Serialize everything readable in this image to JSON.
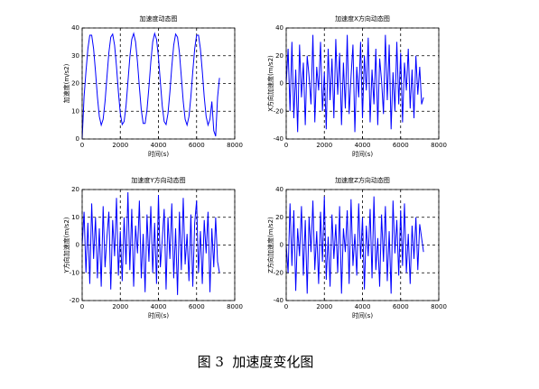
{
  "chart_data": [
    {
      "type": "line",
      "title": "加速度动态图",
      "xlabel": "时间(s)",
      "ylabel": "加速度(m/s2)",
      "x": [
        0,
        100,
        200,
        300,
        400,
        500,
        600,
        700,
        800,
        900,
        1000,
        1100,
        1200,
        1300,
        1400,
        1500,
        1600,
        1700,
        1800,
        1900,
        2000,
        2100,
        2200,
        2300,
        2400,
        2500,
        2600,
        2700,
        2800,
        2900,
        3000,
        3100,
        3200,
        3300,
        3400,
        3500,
        3600,
        3700,
        3800,
        3900,
        4000,
        4100,
        4200,
        4300,
        4400,
        4500,
        4600,
        4700,
        4800,
        4900,
        5000,
        5100,
        5200,
        5300,
        5400,
        5500,
        5600,
        5700,
        5800,
        5900,
        6000,
        6100,
        6200,
        6300,
        6400,
        6500,
        6600,
        6700,
        6800,
        6900,
        7000,
        7100,
        7200
      ],
      "series": [
        {
          "color": "#0000ff",
          "values": [
            0,
            15.2,
            24.3,
            32.5,
            37.4,
            37.4,
            32.5,
            24.3,
            15.2,
            8.1,
            5,
            7.1,
            13.5,
            22.4,
            31.1,
            36.7,
            37.8,
            33.8,
            26.1,
            16.9,
            9.2,
            5.2,
            6.3,
            11.9,
            20.6,
            29.5,
            35.9,
            38,
            35,
            27.8,
            18.7,
            10.5,
            5.6,
            5.6,
            10.5,
            18.7,
            27.8,
            35,
            38,
            35.9,
            29.5,
            20.6,
            11.9,
            6.3,
            5.2,
            9.2,
            16.9,
            26.1,
            33.8,
            37.8,
            36.7,
            31.1,
            22.4,
            13.5,
            7.1,
            5,
            8.1,
            15.2,
            24.3,
            32.5,
            37.4,
            37.4,
            32.5,
            24.3,
            15.2,
            8.1,
            5,
            7.1,
            13.5,
            3,
            1,
            15,
            22
          ]
        }
      ],
      "xlim": [
        0,
        8000
      ],
      "xticks": [
        0,
        2000,
        4000,
        6000,
        8000
      ],
      "ylim": [
        0,
        40
      ],
      "yticks": [
        0,
        10,
        20,
        30,
        40
      ],
      "grid": true
    },
    {
      "type": "line",
      "title": "加速度X方向动态图",
      "xlabel": "时间(s)",
      "ylabel": "X方向加速度(m/s2)",
      "x": [
        0,
        100,
        200,
        300,
        400,
        500,
        600,
        700,
        800,
        900,
        1000,
        1100,
        1200,
        1300,
        1400,
        1500,
        1600,
        1700,
        1800,
        1900,
        2000,
        2100,
        2200,
        2300,
        2400,
        2500,
        2600,
        2700,
        2800,
        2900,
        3000,
        3100,
        3200,
        3300,
        3400,
        3500,
        3600,
        3700,
        3800,
        3900,
        4000,
        4100,
        4200,
        4300,
        4400,
        4500,
        4600,
        4700,
        4800,
        4900,
        5000,
        5100,
        5200,
        5300,
        5400,
        5500,
        5600,
        5700,
        5800,
        5900,
        6000,
        6100,
        6200,
        6300,
        6400,
        6500,
        6600,
        6700,
        6800,
        6900,
        7000,
        7100,
        7200
      ],
      "series": [
        {
          "color": "#0000ff",
          "values": [
            0,
            25,
            -20,
            30,
            -25,
            10,
            -35,
            28,
            -10,
            15,
            -30,
            20,
            5,
            -15,
            35,
            -28,
            12,
            -5,
            30,
            -20,
            8,
            -33,
            25,
            -12,
            18,
            -25,
            32,
            -8,
            22,
            -30,
            15,
            -18,
            35,
            -22,
            5,
            28,
            -35,
            12,
            -10,
            30,
            -25,
            20,
            -5,
            33,
            -28,
            10,
            -15,
            25,
            -30,
            18,
            2,
            -22,
            35,
            -12,
            28,
            -33,
            8,
            -20,
            30,
            -15,
            22,
            -28,
            15,
            -5,
            25,
            -18,
            10,
            -25,
            20,
            -8,
            12,
            -15,
            -10
          ]
        }
      ],
      "xlim": [
        0,
        8000
      ],
      "xticks": [
        0,
        2000,
        4000,
        6000,
        8000
      ],
      "ylim": [
        -40,
        40
      ],
      "yticks": [
        -40,
        -20,
        0,
        20,
        40
      ],
      "grid": true
    },
    {
      "type": "line",
      "title": "加速度Y方向动态图",
      "xlabel": "时间(s)",
      "ylabel": "Y方向加速度(m/s2)",
      "x": [
        0,
        100,
        200,
        300,
        400,
        500,
        600,
        700,
        800,
        900,
        1000,
        1100,
        1200,
        1300,
        1400,
        1500,
        1600,
        1700,
        1800,
        1900,
        2000,
        2100,
        2200,
        2300,
        2400,
        2500,
        2600,
        2700,
        2800,
        2900,
        3000,
        3100,
        3200,
        3300,
        3400,
        3500,
        3600,
        3700,
        3800,
        3900,
        4000,
        4100,
        4200,
        4300,
        4400,
        4500,
        4600,
        4700,
        4800,
        4900,
        5000,
        5100,
        5200,
        5300,
        5400,
        5500,
        5600,
        5700,
        5800,
        5900,
        6000,
        6100,
        6200,
        6300,
        6400,
        6500,
        6600,
        6700,
        6800,
        6900,
        7000,
        7100,
        7200
      ],
      "series": [
        {
          "color": "#0000ff",
          "values": [
            0,
            12,
            -10,
            8,
            -14,
            15,
            -5,
            10,
            -12,
            6,
            -15,
            14,
            -8,
            3,
            12,
            -16,
            9,
            -4,
            17,
            -11,
            5,
            -13,
            10,
            -7,
            19,
            -9,
            13,
            -15,
            7,
            -3,
            16,
            -12,
            4,
            -17,
            11,
            -6,
            14,
            -10,
            8,
            -14,
            18,
            -8,
            2,
            13,
            -16,
            10,
            -5,
            15,
            -12,
            6,
            -18,
            12,
            -9,
            17,
            -7,
            4,
            -13,
            11,
            -15,
            8,
            16,
            -10,
            5,
            -14,
            9,
            -3,
            12,
            -17,
            6,
            -8,
            10,
            -6,
            -10
          ]
        }
      ],
      "xlim": [
        0,
        8000
      ],
      "xticks": [
        0,
        2000,
        4000,
        6000,
        8000
      ],
      "ylim": [
        -20,
        20
      ],
      "yticks": [
        -20,
        -10,
        0,
        10,
        20
      ],
      "grid": true
    },
    {
      "type": "line",
      "title": "加速度Z方向动态图",
      "xlabel": "时间(s)",
      "ylabel": "Z方向加速度(m/s2)",
      "x": [
        0,
        100,
        200,
        300,
        400,
        500,
        600,
        700,
        800,
        900,
        1000,
        1100,
        1200,
        1300,
        1400,
        1500,
        1600,
        1700,
        1800,
        1900,
        2000,
        2100,
        2200,
        2300,
        2400,
        2500,
        2600,
        2700,
        2800,
        2900,
        3000,
        3100,
        3200,
        3300,
        3400,
        3500,
        3600,
        3700,
        3800,
        3900,
        4000,
        4100,
        4200,
        4300,
        4400,
        4500,
        4600,
        4700,
        4800,
        4900,
        5000,
        5100,
        5200,
        5300,
        5400,
        5500,
        5600,
        5700,
        5800,
        5900,
        6000,
        6100,
        6200,
        6300,
        6400,
        6500,
        6600,
        6700,
        6800,
        6900,
        7000,
        7100,
        7200
      ],
      "series": [
        {
          "color": "#0000ff",
          "values": [
            0,
            -20,
            30,
            -15,
            25,
            -33,
            12,
            -8,
            28,
            -22,
            18,
            -35,
            20,
            -5,
            32,
            -18,
            10,
            -28,
            24,
            -12,
            35,
            -25,
            6,
            -30,
            22,
            -10,
            15,
            -20,
            28,
            -35,
            12,
            -5,
            25,
            -28,
            33,
            -15,
            8,
            -22,
            30,
            -10,
            20,
            -32,
            14,
            -8,
            26,
            -24,
            35,
            -18,
            5,
            -30,
            22,
            -12,
            28,
            -26,
            10,
            -35,
            32,
            -6,
            18,
            -22,
            25,
            -15,
            30,
            -20,
            8,
            -28,
            14,
            -10,
            20,
            -18,
            15,
            5,
            -5
          ]
        }
      ],
      "xlim": [
        0,
        8000
      ],
      "xticks": [
        0,
        2000,
        4000,
        6000,
        8000
      ],
      "ylim": [
        -40,
        40
      ],
      "yticks": [
        -40,
        -20,
        0,
        20,
        40
      ],
      "grid": true
    }
  ],
  "caption": "图 3  加速度变化图"
}
